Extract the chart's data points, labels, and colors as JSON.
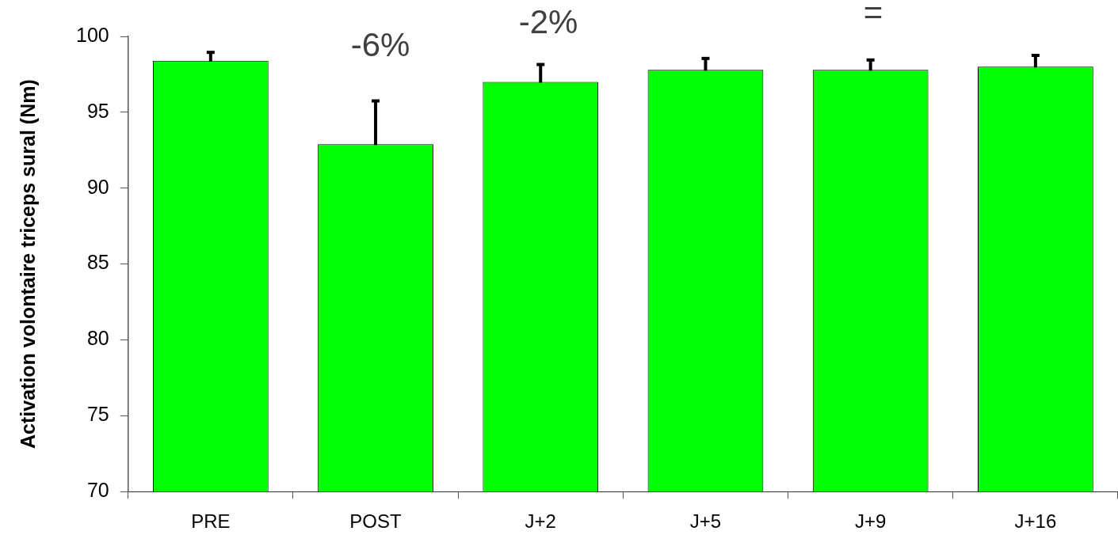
{
  "chart_data": {
    "type": "bar",
    "ylabel": "Activation volontaire triceps sural (Nm)",
    "categories": [
      "PRE",
      "POST",
      "J+2",
      "J+5",
      "J+9",
      "J+16"
    ],
    "values": [
      98.4,
      92.9,
      97.0,
      97.8,
      97.8,
      98.0
    ],
    "errors": [
      0.6,
      2.9,
      1.2,
      0.8,
      0.7,
      0.8
    ],
    "color": "#00ff00",
    "ylim": [
      70,
      100
    ],
    "yticks": [
      70,
      75,
      80,
      85,
      90,
      95,
      100
    ],
    "grid": false,
    "legend": false,
    "annotations": [
      "-6%",
      "-2%",
      "="
    ]
  }
}
